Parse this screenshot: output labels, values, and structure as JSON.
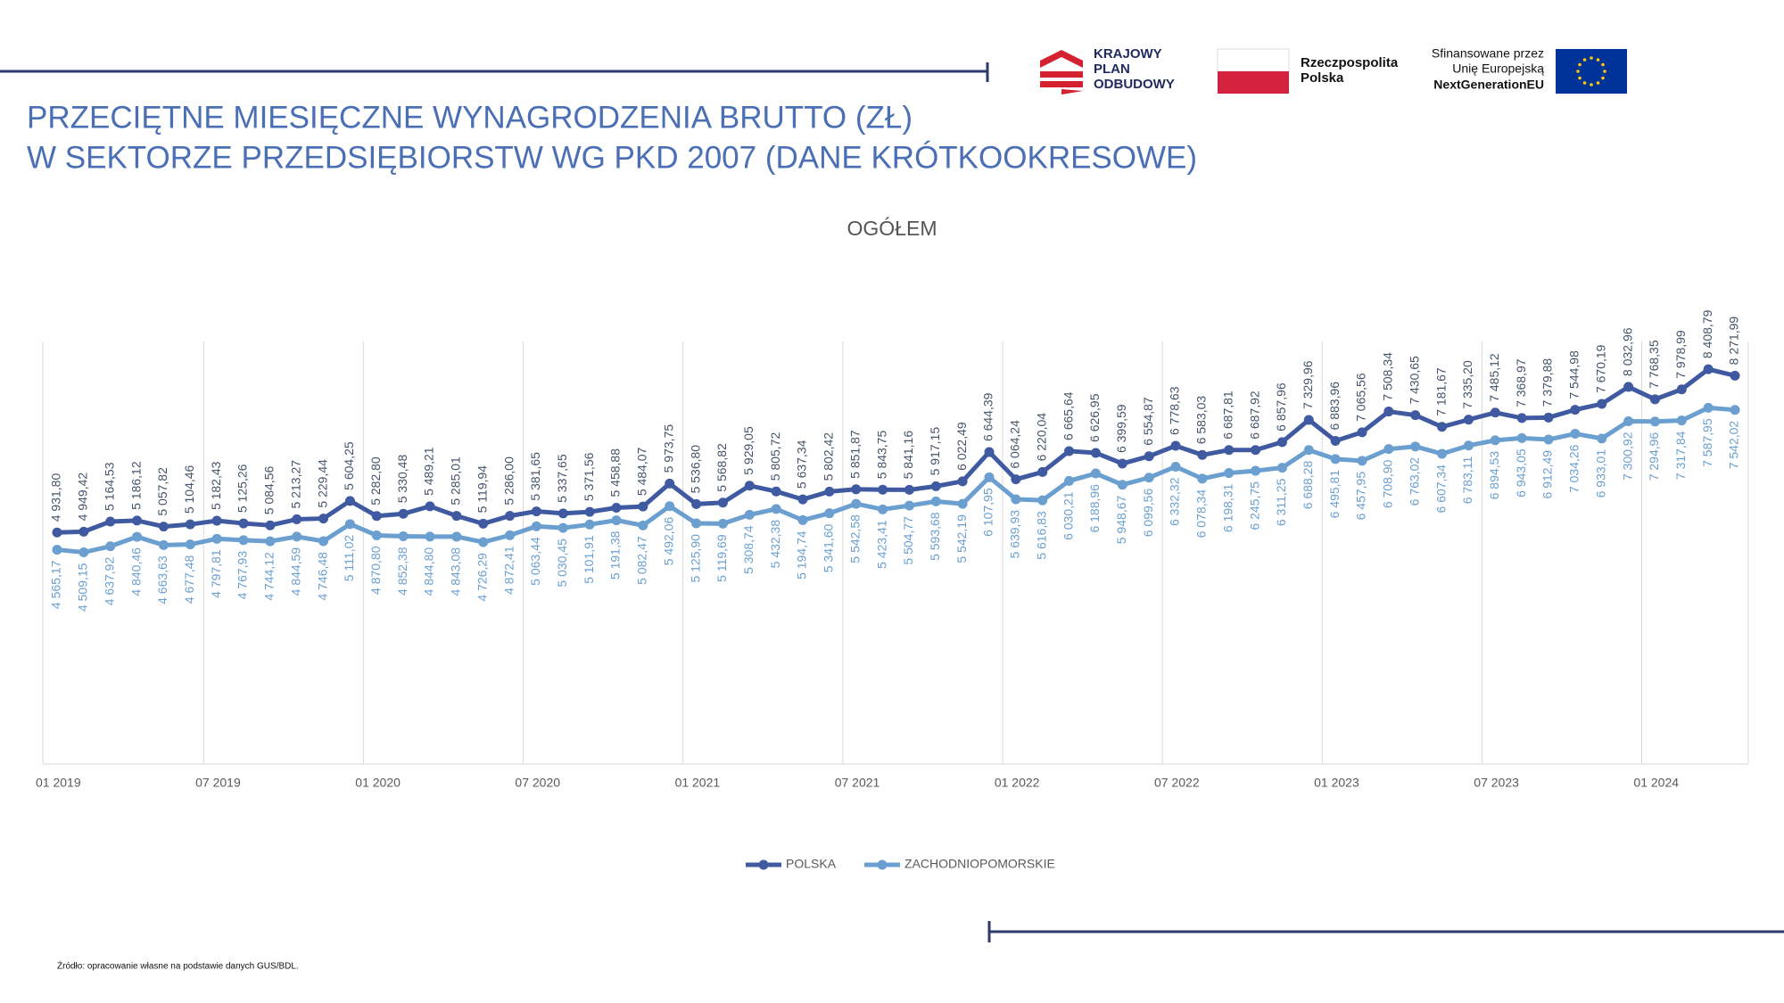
{
  "title": [
    "PRZECIĘTNE MIESIĘCZNE WYNAGRODZENIA BRUTTO (ZŁ)",
    "W SEKTORZE PRZEDSIĘBIORSTW WG PKD 2007 (DANE KRÓTKOOKRESOWE)"
  ],
  "logos": {
    "kpo": [
      "KRAJOWY",
      "PLAN",
      "ODBUDOWY"
    ],
    "rp": [
      "Rzeczpospolita",
      "Polska"
    ],
    "eu": [
      "Sfinansowane przez",
      "Unię Europejską",
      "NextGenerationEU"
    ]
  },
  "source": "Źródło: opracowanie własne na podstawie danych GUS/BDL.",
  "chart_data": {
    "type": "line",
    "title": "OGÓŁEM",
    "ylim": [
      0,
      9000
    ],
    "legend": "bottom",
    "categories": [
      "01 2019",
      null,
      null,
      null,
      null,
      null,
      "07 2019",
      null,
      null,
      null,
      null,
      null,
      "01 2020",
      null,
      null,
      null,
      null,
      null,
      "07 2020",
      null,
      null,
      null,
      null,
      null,
      "01 2021",
      null,
      null,
      null,
      null,
      null,
      "07 2021",
      null,
      null,
      null,
      null,
      null,
      "01 2022",
      null,
      null,
      null,
      null,
      null,
      "07 2022",
      null,
      null,
      null,
      null,
      null,
      "01 2023",
      null,
      null,
      null,
      null,
      null,
      "07 2023",
      null,
      null,
      null,
      null,
      null,
      "01 2024",
      null,
      null,
      null
    ],
    "series": [
      {
        "name": "POLSKA",
        "color": "#3f5aa0",
        "label_color": "#44546a",
        "values": [
          4931.8,
          4949.42,
          5164.53,
          5186.12,
          5057.82,
          5104.46,
          5182.43,
          5125.26,
          5084.56,
          5213.27,
          5229.44,
          5604.25,
          5282.8,
          5330.48,
          5489.21,
          5285.01,
          5119.94,
          5286.0,
          5381.65,
          5337.65,
          5371.56,
          5458.88,
          5484.07,
          5973.75,
          5536.8,
          5568.82,
          5929.05,
          5805.72,
          5637.34,
          5802.42,
          5851.87,
          5843.75,
          5841.16,
          5917.15,
          6022.49,
          6644.39,
          6064.24,
          6220.04,
          6665.64,
          6626.95,
          6399.59,
          6554.87,
          6778.63,
          6583.03,
          6687.81,
          6687.92,
          6857.96,
          7329.96,
          6883.96,
          7065.56,
          7508.34,
          7430.65,
          7181.67,
          7335.2,
          7485.12,
          7368.97,
          7379.88,
          7544.98,
          7670.19,
          8032.96,
          7768.35,
          7978.99,
          8408.79,
          8271.99
        ],
        "value_labels": [
          "4 931,80",
          "4 949,42",
          "5 164,53",
          "5 186,12",
          "5 057,82",
          "5 104,46",
          "5 182,43",
          "5 125,26",
          "5 084,56",
          "5 213,27",
          "5 229,44",
          "5 604,25",
          "5 282,80",
          "5 330,48",
          "5 489,21",
          "5 285,01",
          "5 119,94",
          "5 286,00",
          "5 381,65",
          "5 337,65",
          "5 371,56",
          "5 458,88",
          "5 484,07",
          "5 973,75",
          "5 536,80",
          "5 568,82",
          "5 929,05",
          "5 805,72",
          "5 637,34",
          "5 802,42",
          "5 851,87",
          "5 843,75",
          "5 841,16",
          "5 917,15",
          "6 022,49",
          "6 644,39",
          "6 064,24",
          "6 220,04",
          "6 665,64",
          "6 626,95",
          "6 399,59",
          "6 554,87",
          "6 778,63",
          "6 583,03",
          "6 687,81",
          "6 687,92",
          "6 857,96",
          "7 329,96",
          "6 883,96",
          "7 065,56",
          "7 508,34",
          "7 430,65",
          "7 181,67",
          "7 335,20",
          "7 485,12",
          "7 368,97",
          "7 379,88",
          "7 544,98",
          "7 670,19",
          "8 032,96",
          "7 768,35",
          "7 978,99",
          "8 408,79",
          "8 271,99"
        ]
      },
      {
        "name": "ZACHODNIOPOMORSKIE",
        "color": "#6a9fd0",
        "label_color": "#6a9fd0",
        "values": [
          4565.17,
          4509.15,
          4637.92,
          4840.46,
          4663.63,
          4677.48,
          4797.81,
          4767.93,
          4744.12,
          4844.59,
          4746.48,
          5111.02,
          4870.8,
          4852.38,
          4844.8,
          4843.08,
          4726.29,
          4872.41,
          5063.44,
          5030.45,
          5101.91,
          5191.38,
          5082.47,
          5492.06,
          5125.9,
          5119.69,
          5308.74,
          5432.38,
          5194.74,
          5341.6,
          5542.58,
          5423.41,
          5504.77,
          5593.68,
          5542.19,
          6107.95,
          5639.93,
          5616.83,
          6030.21,
          6188.96,
          5948.67,
          6099.56,
          6332.32,
          6078.34,
          6198.31,
          6245.75,
          6311.25,
          6688.28,
          6495.81,
          6457.95,
          6708.9,
          6763.02,
          6607.34,
          6783.11,
          6894.53,
          6943.05,
          6912.49,
          7034.26,
          6933.01,
          7300.92,
          7294.96,
          7317.84,
          7587.95,
          7542.02
        ],
        "value_labels": [
          "4 565,17",
          "4 509,15",
          "4 637,92",
          "4 840,46",
          "4 663,63",
          "4 677,48",
          "4 797,81",
          "4 767,93",
          "4 744,12",
          "4 844,59",
          "4 746,48",
          "5 111,02",
          "4 870,80",
          "4 852,38",
          "4 844,80",
          "4 843,08",
          "4 726,29",
          "4 872,41",
          "5 063,44",
          "5 030,45",
          "5 101,91",
          "5 191,38",
          "5 082,47",
          "5 492,06",
          "5 125,90",
          "5 119,69",
          "5 308,74",
          "5 432,38",
          "5 194,74",
          "5 341,60",
          "5 542,58",
          "5 423,41",
          "5 504,77",
          "5 593,68",
          "5 542,19",
          "6 107,95",
          "5 639,93",
          "5 616,83",
          "6 030,21",
          "6 188,96",
          "5 948,67",
          "6 099,56",
          "6 332,32",
          "6 078,34",
          "6 198,31",
          "6 245,75",
          "6 311,25",
          "6 688,28",
          "6 495,81",
          "6 457,95",
          "6 708,90",
          "6 763,02",
          "6 607,34",
          "6 783,11",
          "6 894,53",
          "6 943,05",
          "6 912,49",
          "7 034,26",
          "6 933,01",
          "7 300,92",
          "7 294,96",
          "7 317,84",
          "7 587,95",
          "7 542,02"
        ]
      }
    ]
  }
}
